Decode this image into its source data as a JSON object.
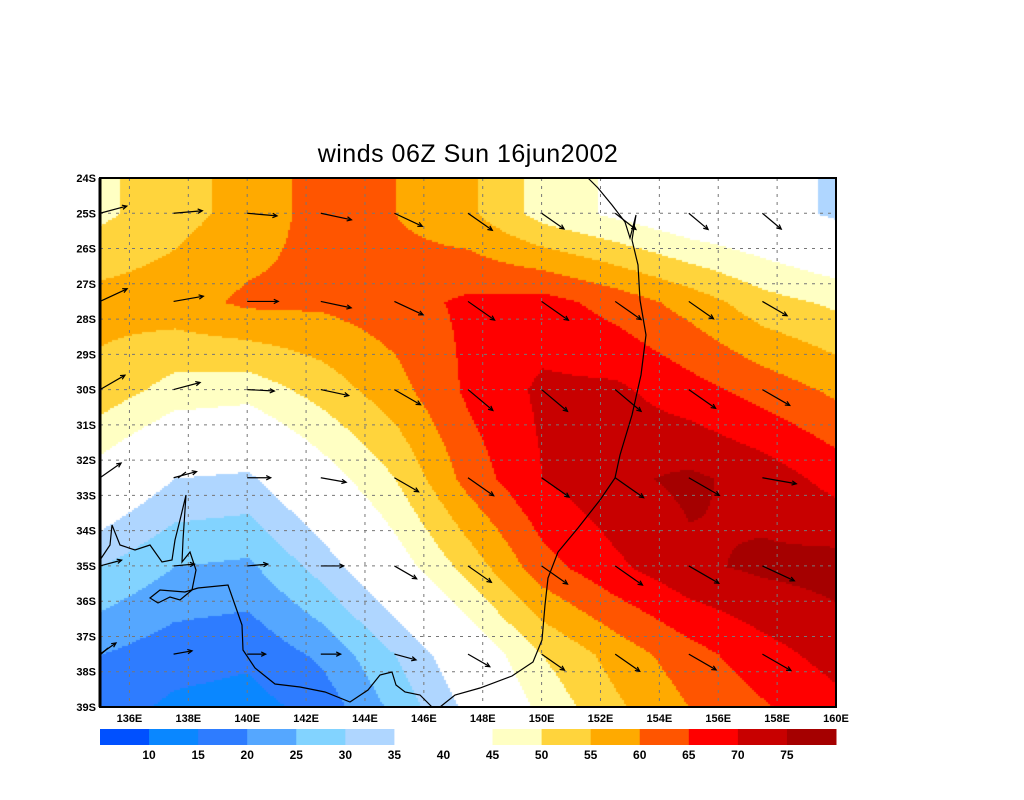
{
  "chart_data": {
    "type": "heatmap",
    "subtype": "filled-contour-map-with-wind-vectors",
    "title": "winds 06Z Sun 16jun2002",
    "xlabel": "",
    "ylabel": "",
    "xlim": [
      135,
      160
    ],
    "ylim": [
      -39,
      -24
    ],
    "x_ticks": [
      136,
      138,
      140,
      142,
      144,
      146,
      148,
      150,
      152,
      154,
      156,
      158,
      160
    ],
    "x_tick_labels": [
      "136E",
      "138E",
      "140E",
      "142E",
      "144E",
      "146E",
      "148E",
      "150E",
      "152E",
      "154E",
      "156E",
      "158E",
      "160E"
    ],
    "y_ticks": [
      -24,
      -25,
      -26,
      -27,
      -28,
      -29,
      -30,
      -31,
      -32,
      -33,
      -34,
      -35,
      -36,
      -37,
      -38,
      -39
    ],
    "y_tick_labels": [
      "24S",
      "25S",
      "26S",
      "27S",
      "28S",
      "29S",
      "30S",
      "31S",
      "32S",
      "33S",
      "34S",
      "35S",
      "36S",
      "37S",
      "38S",
      "39S"
    ],
    "grid": true,
    "grid_lons": [
      135,
      137.5,
      140,
      142.5,
      145,
      147.5,
      150,
      152.5,
      155,
      157.5,
      160
    ],
    "grid_lats": [
      -25,
      -27.5,
      -30,
      -32.5,
      -35,
      -37.5,
      -40
    ],
    "wind_speed": [
      [
        49,
        53,
        57,
        62,
        60,
        56,
        48,
        44,
        40,
        38,
        34
      ],
      [
        57,
        58,
        61,
        61,
        63,
        66,
        67,
        63,
        58,
        52,
        49
      ],
      [
        53,
        48,
        47,
        52,
        58,
        66,
        71,
        71,
        67,
        63,
        59
      ],
      [
        42,
        35,
        34,
        42,
        50,
        62,
        70,
        74,
        76,
        73,
        68
      ],
      [
        30,
        25,
        24,
        32,
        42,
        52,
        63,
        69,
        74,
        76,
        77
      ],
      [
        20,
        17,
        16,
        21,
        30,
        40,
        50,
        57,
        63,
        68,
        72
      ],
      [
        15,
        12,
        11,
        14,
        24,
        34,
        44,
        52,
        58,
        62,
        66
      ]
    ],
    "vector_lons": [
      135,
      137.5,
      140,
      142.5,
      145,
      147.5,
      150,
      152.5,
      155,
      157.5
    ],
    "vector_lats": [
      -25,
      -27.5,
      -30,
      -32.5,
      -35,
      -37.5
    ],
    "vector_direction_deg": [
      [
        15,
        5,
        -5,
        -12,
        -25,
        -35,
        -35,
        -38,
        -40,
        -40
      ],
      [
        25,
        10,
        0,
        -12,
        -25,
        -35,
        -35,
        -35,
        -35,
        -30
      ],
      [
        30,
        15,
        -3,
        -12,
        -30,
        -40,
        -40,
        -40,
        -35,
        -30
      ],
      [
        35,
        15,
        0,
        -10,
        -30,
        -35,
        -35,
        -35,
        -30,
        -10
      ],
      [
        15,
        5,
        5,
        0,
        -30,
        -35,
        -35,
        -35,
        -30,
        -25
      ],
      [
        35,
        10,
        0,
        0,
        -15,
        -30,
        -35,
        -35,
        -30,
        -30
      ]
    ],
    "colorbar": {
      "levels": [
        10,
        15,
        20,
        25,
        30,
        35,
        40,
        45,
        50,
        55,
        60,
        65,
        70,
        75
      ],
      "labels": [
        "10",
        "15",
        "20",
        "25",
        "30",
        "35",
        "40",
        "45",
        "50",
        "55",
        "60",
        "65",
        "70",
        "75"
      ],
      "colors": [
        "#0050ff",
        "#0a87ff",
        "#2e7cff",
        "#55a7ff",
        "#82d3ff",
        "#afd6ff",
        "#ffffff",
        "#ffffff",
        "#ffffc3",
        "#ffd43c",
        "#ffaa00",
        "#ff5500",
        "#ff0000",
        "#c80000",
        "#a50000"
      ]
    }
  }
}
